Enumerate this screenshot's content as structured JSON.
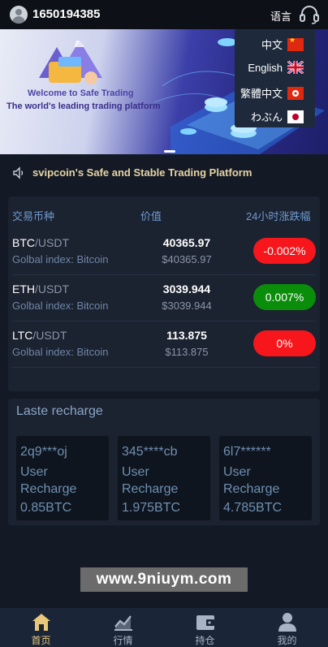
{
  "header": {
    "user_id": "1650194385",
    "language_label": "语言",
    "icons": {
      "avatar": "user-avatar-icon",
      "service": "headset-icon"
    }
  },
  "banner": {
    "line1": "Welcome to Safe Trading",
    "line2": "The world's leading trading platform"
  },
  "language_menu": {
    "items": [
      {
        "label": "中文",
        "flag": "china-flag-icon"
      },
      {
        "label": "English",
        "flag": "uk-flag-icon"
      },
      {
        "label": "繁體中文",
        "flag": "hongkong-flag-icon"
      },
      {
        "label": "わぶん",
        "flag": "japan-flag-icon"
      }
    ]
  },
  "notice": {
    "text": "svipcoin's Safe and Stable Trading Platform",
    "icon": "speaker-icon"
  },
  "market": {
    "headers": {
      "pair": "交易币种",
      "value": "价值",
      "change": "24小时涨跌幅"
    },
    "rows": [
      {
        "base": "BTC",
        "quote": "/USDT",
        "index": "Golbal index: Bitcoin",
        "price": "40365.97",
        "price_usd": "$40365.97",
        "change": "-0.002%",
        "trend": "down"
      },
      {
        "base": "ETH",
        "quote": "/USDT",
        "index": "Golbal index: Bitcoin",
        "price": "3039.944",
        "price_usd": "$3039.944",
        "change": "0.007%",
        "trend": "up"
      },
      {
        "base": "LTC",
        "quote": "/USDT",
        "index": "Golbal index: Bitcoin",
        "price": "113.875",
        "price_usd": "$113.875",
        "change": "0%",
        "trend": "down"
      }
    ],
    "colors": {
      "down": "#f6161b",
      "up": "#0a8d0a"
    }
  },
  "recharge": {
    "title": "Laste recharge",
    "cards": [
      {
        "user": "2q9***oj",
        "label": "User Recharge",
        "amount": "0.85BTC"
      },
      {
        "user": "345****cb",
        "label": "User Recharge",
        "amount": "1.975BTC"
      },
      {
        "user": "6l7******",
        "label": "User Recharge",
        "amount": "4.785BTC"
      }
    ]
  },
  "watermark": "www.9niuym.com",
  "nav": {
    "items": [
      {
        "label": "首页",
        "icon": "home-icon",
        "active": true
      },
      {
        "label": "行情",
        "icon": "chart-icon",
        "active": false
      },
      {
        "label": "持仓",
        "icon": "wallet-icon",
        "active": false
      },
      {
        "label": "我的",
        "icon": "profile-icon",
        "active": false
      }
    ],
    "accent": "#e9c77b"
  }
}
